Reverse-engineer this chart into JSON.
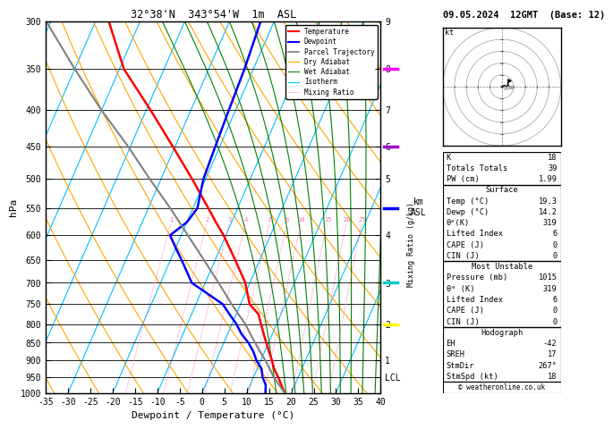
{
  "title_left": "32°38'N  343°54'W  1m  ASL",
  "title_date": "09.05.2024  12GMT  (Base: 12)",
  "xlabel": "Dewpoint / Temperature (°C)",
  "ylabel_left": "hPa",
  "pressure_levels": [
    300,
    350,
    400,
    450,
    500,
    550,
    600,
    650,
    700,
    750,
    800,
    850,
    900,
    950,
    1000
  ],
  "xmin": -35,
  "xmax": 40,
  "temp_profile": {
    "pressure": [
      1000,
      975,
      950,
      925,
      900,
      875,
      850,
      825,
      800,
      775,
      750,
      700,
      650,
      600,
      575,
      550,
      500,
      450,
      400,
      350,
      300
    ],
    "temp": [
      18.5,
      17.0,
      15.5,
      13.8,
      12.5,
      11.0,
      9.5,
      8.0,
      6.5,
      5.0,
      2.0,
      -1.0,
      -5.5,
      -10.5,
      -13.5,
      -16.5,
      -23.0,
      -30.5,
      -39.0,
      -49.0,
      -57.0
    ]
  },
  "dewp_profile": {
    "pressure": [
      1000,
      975,
      950,
      925,
      900,
      875,
      850,
      825,
      800,
      775,
      750,
      700,
      650,
      625,
      600,
      575,
      550,
      500,
      450,
      400,
      350,
      300
    ],
    "dewp": [
      14.2,
      13.5,
      12.0,
      11.0,
      9.0,
      7.5,
      5.5,
      3.0,
      1.0,
      -1.5,
      -4.0,
      -13.0,
      -17.5,
      -20.0,
      -22.5,
      -20.0,
      -19.0,
      -20.5,
      -21.0,
      -21.5,
      -22.0,
      -23.0
    ]
  },
  "parcel_profile": {
    "pressure": [
      1000,
      975,
      950,
      925,
      900,
      875,
      850,
      825,
      800,
      775,
      750,
      700,
      650,
      600,
      550,
      500,
      450,
      400,
      350,
      300
    ],
    "temp": [
      18.5,
      16.5,
      14.5,
      12.8,
      11.0,
      9.0,
      7.0,
      5.0,
      3.0,
      0.5,
      -2.0,
      -7.0,
      -12.5,
      -18.5,
      -25.0,
      -32.5,
      -40.5,
      -50.0,
      -60.0,
      -71.0
    ]
  },
  "lcl_pressure": 952,
  "mixing_ratio_lines": [
    1,
    2,
    3,
    4,
    6,
    8,
    10,
    15,
    20,
    25
  ],
  "temp_color": "#ff0000",
  "dewp_color": "#0000ff",
  "parcel_color": "#808080",
  "dry_adiabat_color": "#ffa500",
  "wet_adiabat_color": "#008000",
  "isotherm_color": "#00bfff",
  "mixing_ratio_color": "#ff69b4",
  "wind_barb_colors": [
    "#ff00ff",
    "#9900cc",
    "#0000ff",
    "#00cccc",
    "#ffff00"
  ],
  "wind_barb_pressures": [
    350,
    450,
    550,
    700,
    800
  ],
  "km_tick_pressures": [
    300,
    350,
    400,
    450,
    500,
    600,
    700,
    800,
    900,
    950
  ],
  "km_tick_labels": [
    "9",
    "8",
    "7",
    "6",
    "5",
    "4",
    "3",
    "2",
    "1",
    "LCL"
  ],
  "stats": {
    "K": 18,
    "Totals_Totals": 39,
    "PW_cm": 1.99,
    "Surface_Temp": 19.3,
    "Surface_Dewp": 14.2,
    "Surface_theta_e": 319,
    "Surface_Lifted_Index": 6,
    "Surface_CAPE": 0,
    "Surface_CIN": 0,
    "MU_Pressure": 1015,
    "MU_theta_e": 319,
    "MU_Lifted_Index": 6,
    "MU_CAPE": 0,
    "MU_CIN": 0,
    "EH": -42,
    "SREH": 17,
    "StmDir": 267,
    "StmSpd": 18
  },
  "copyright": "© weatheronline.co.uk"
}
